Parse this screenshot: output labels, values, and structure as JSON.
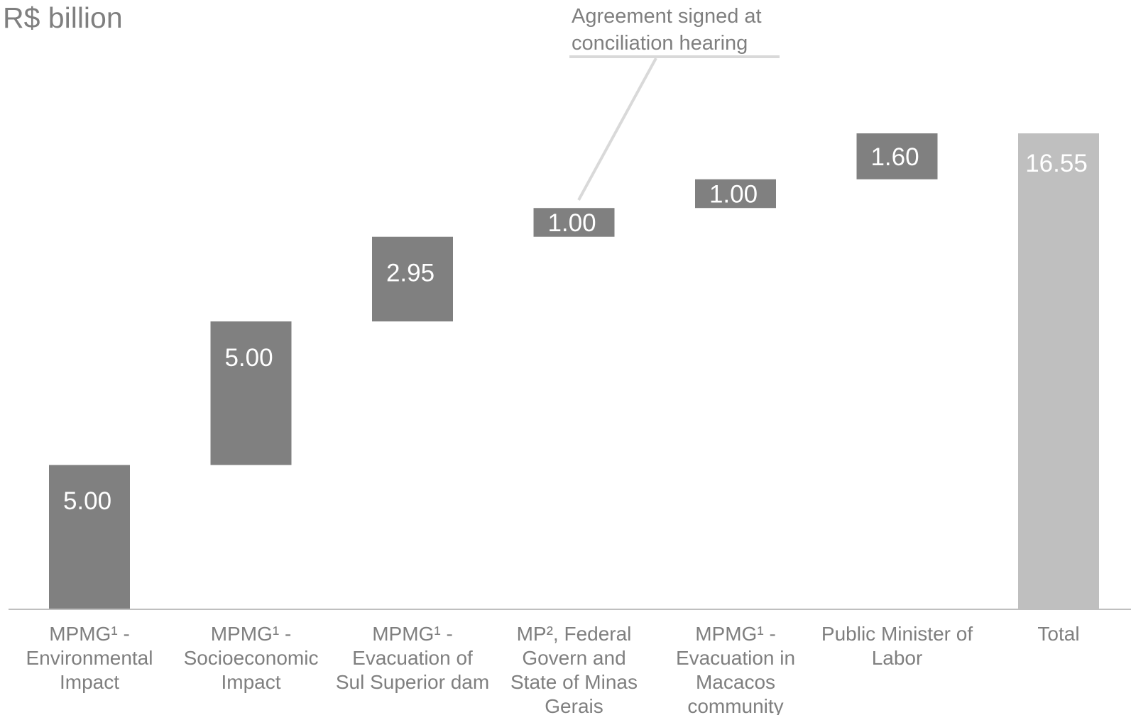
{
  "chart_data": {
    "type": "bar",
    "subtype": "waterfall",
    "unit_label": "R$ billion",
    "categories": [
      [
        "MPMG¹ -",
        "Environmental",
        "Impact"
      ],
      [
        "MPMG¹ -",
        "Socioeconomic",
        "Impact"
      ],
      [
        "MPMG¹ -",
        "Evacuation of",
        "Sul Superior dam"
      ],
      [
        "MP², Federal",
        "Govern and",
        "State of Minas",
        "Gerais"
      ],
      [
        "MPMG¹ -",
        "Evacuation in",
        "Macacos",
        "community"
      ],
      [
        "Public Minister of",
        "Labor"
      ],
      [
        "Total"
      ]
    ],
    "values": [
      5.0,
      5.0,
      2.95,
      1.0,
      1.0,
      1.6,
      16.55
    ],
    "value_labels": [
      "5.00",
      "5.00",
      "2.95",
      "1.00",
      "1.00",
      "1.60",
      "16.55"
    ],
    "is_total": [
      false,
      false,
      false,
      false,
      false,
      false,
      true
    ],
    "ylim": [
      0,
      16.55
    ],
    "grid": false,
    "legend": "none",
    "annotation": {
      "lines": [
        "Agreement signed at",
        "conciliation hearing"
      ],
      "target_category_index": 3
    },
    "colors": {
      "increment": "#808080",
      "total": "#bfbfbf",
      "text_light": "#ffffff",
      "text_axis": "#7f7f7f",
      "axis_line": "#bfbfbf",
      "callout_line": "#d9d9d9"
    }
  }
}
